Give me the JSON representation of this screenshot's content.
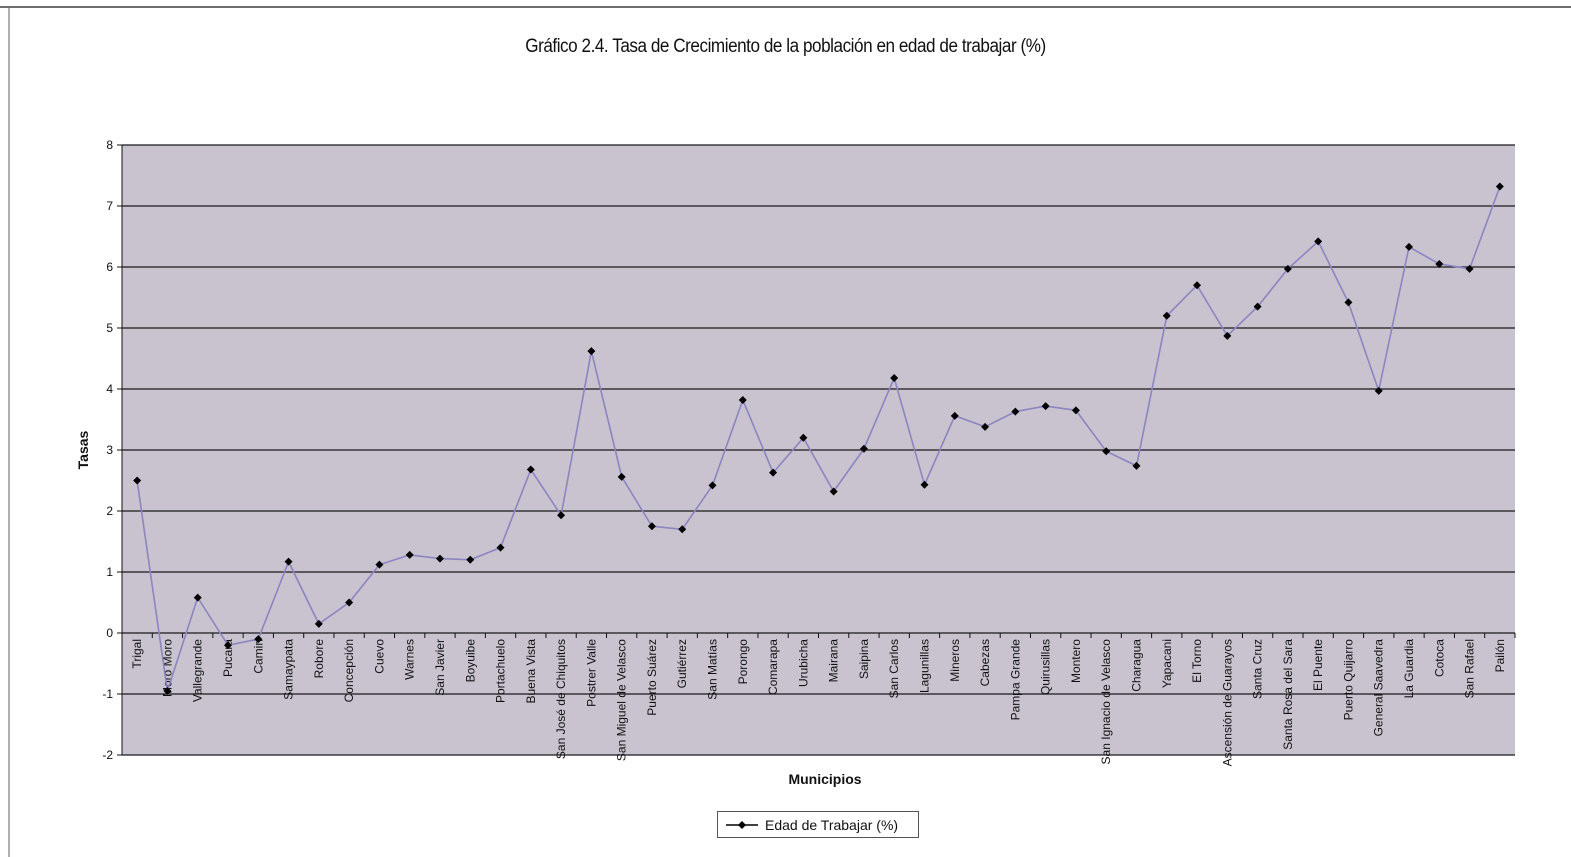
{
  "chart_data": {
    "type": "line",
    "title": "Gráfico 2.4. Tasa de Crecimiento de la población en edad de trabajar (%)",
    "xlabel": "Municipios",
    "ylabel": "Tasas",
    "ylim": [
      -2,
      8
    ],
    "yticks": [
      "-2",
      "-1",
      "0",
      "1",
      "2",
      "3",
      "4",
      "5",
      "6",
      "7",
      "8"
    ],
    "grid": "horizontal",
    "legend_position": "bottom",
    "colors": {
      "plot_bg": "#c8c3cf",
      "line": "#8d84c0",
      "marker": "#000000",
      "grid": "#1a1a1a"
    },
    "categories": [
      "Trigal",
      "Moro Moro",
      "Vallegrande",
      "Pucara",
      "Camiri",
      "Samaypata",
      "Robore",
      "Concepción",
      "Cuevo",
      "Warnes",
      "San Javier",
      "Boyuibe",
      "Portachuelo",
      "Buena Vista",
      "San José de Chiquitos",
      "Postrer Valle",
      "San Miguel de Velasco",
      "Puerto Suárez",
      "Gutiérrez",
      "San Matías",
      "Porongo",
      "Comarapa",
      "Urubicha",
      "Mairana",
      "Saipina",
      "San Carlos",
      "Lagunillas",
      "Mineros",
      "Cabezas",
      "Pampa Grande",
      "Quirusillas",
      "Montero",
      "San Ignacio de Velasco",
      "Charagua",
      "Yapacani",
      "El Torno",
      "Ascensión de Guarayos",
      "Santa Cruz",
      "Santa Rosa del Sara",
      "El Puente",
      "Puerto Quijarro",
      "General Saavedra",
      "La Guardia",
      "Cotoca",
      "San Rafael",
      "Pailón"
    ],
    "series": [
      {
        "name": "Edad de Trabajar (%)",
        "values": [
          2.5,
          -0.95,
          0.58,
          -0.2,
          -0.1,
          1.17,
          0.15,
          0.5,
          1.12,
          1.28,
          1.22,
          1.2,
          1.4,
          2.68,
          1.93,
          4.62,
          2.56,
          1.75,
          1.7,
          2.42,
          3.82,
          2.63,
          3.2,
          2.32,
          3.02,
          4.18,
          2.43,
          3.56,
          3.38,
          3.63,
          3.72,
          3.65,
          2.98,
          2.74,
          5.2,
          5.7,
          4.87,
          5.35,
          5.97,
          6.42,
          5.42,
          3.97,
          6.33,
          6.05,
          5.97,
          7.32
        ]
      }
    ]
  }
}
